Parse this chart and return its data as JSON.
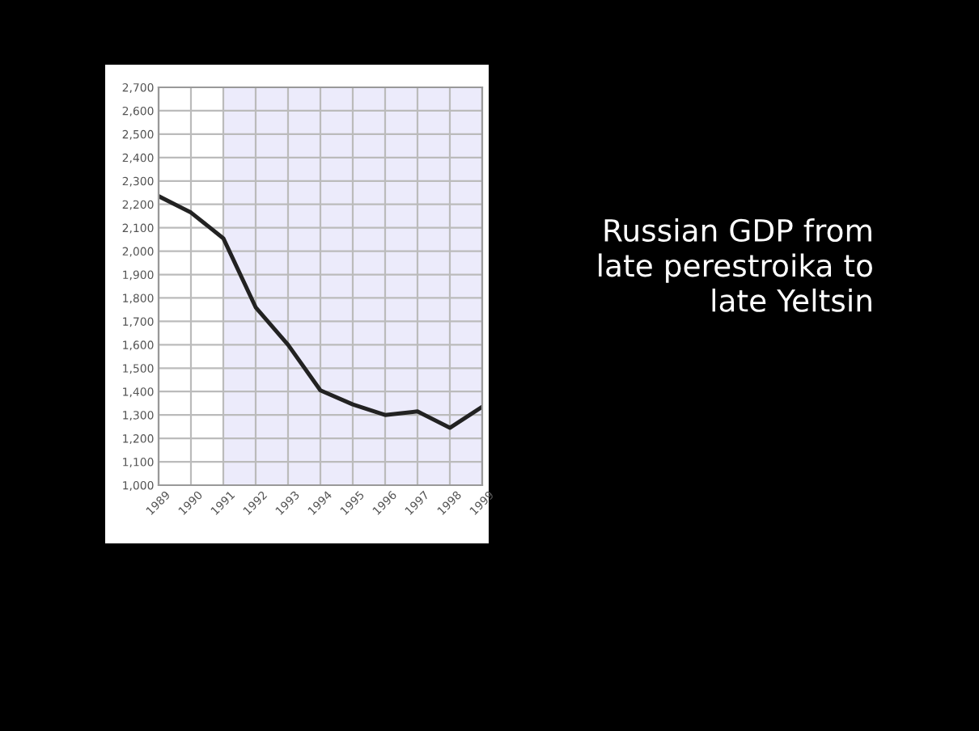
{
  "chart_data": {
    "type": "line",
    "title": "Russian GDP from\nlate perestroika to\nlate Yeltsin",
    "x": [
      1989,
      1990,
      1991,
      1992,
      1993,
      1994,
      1995,
      1996,
      1997,
      1998,
      1999
    ],
    "series": [
      {
        "color": "#222222",
        "values": [
          2235,
          2165,
          2055,
          1760,
          1600,
          1405,
          1345,
          1300,
          1315,
          1245,
          1335
        ]
      }
    ],
    "xlim": [
      1989,
      1999
    ],
    "xticks": [
      1989,
      1990,
      1991,
      1992,
      1993,
      1994,
      1995,
      1996,
      1997,
      1998,
      1999
    ],
    "ylim": [
      1000,
      2700
    ],
    "yticks": [
      {
        "value": 1000,
        "label": "1,000"
      },
      {
        "value": 1100,
        "label": "1,100"
      },
      {
        "value": 1200,
        "label": "1,200"
      },
      {
        "value": 1300,
        "label": "1,300"
      },
      {
        "value": 1400,
        "label": "1,400"
      },
      {
        "value": 1500,
        "label": "1,500"
      },
      {
        "value": 1600,
        "label": "1,600"
      },
      {
        "value": 1700,
        "label": "1,700"
      },
      {
        "value": 1800,
        "label": "1,800"
      },
      {
        "value": 1900,
        "label": "1,900"
      },
      {
        "value": 2000,
        "label": "2,000"
      },
      {
        "value": 2100,
        "label": "2,100"
      },
      {
        "value": 2200,
        "label": "2,200"
      },
      {
        "value": 2300,
        "label": "2,300"
      },
      {
        "value": 2400,
        "label": "2,400"
      },
      {
        "value": 2500,
        "label": "2,500"
      },
      {
        "value": 2600,
        "label": "2,600"
      },
      {
        "value": 2700,
        "label": "2,700"
      }
    ],
    "bands": [
      {
        "axis": "x",
        "from": 1991,
        "to": 1999,
        "color": "#ecebfb"
      }
    ],
    "grid": true,
    "marker": "none",
    "line_style": "solid"
  }
}
